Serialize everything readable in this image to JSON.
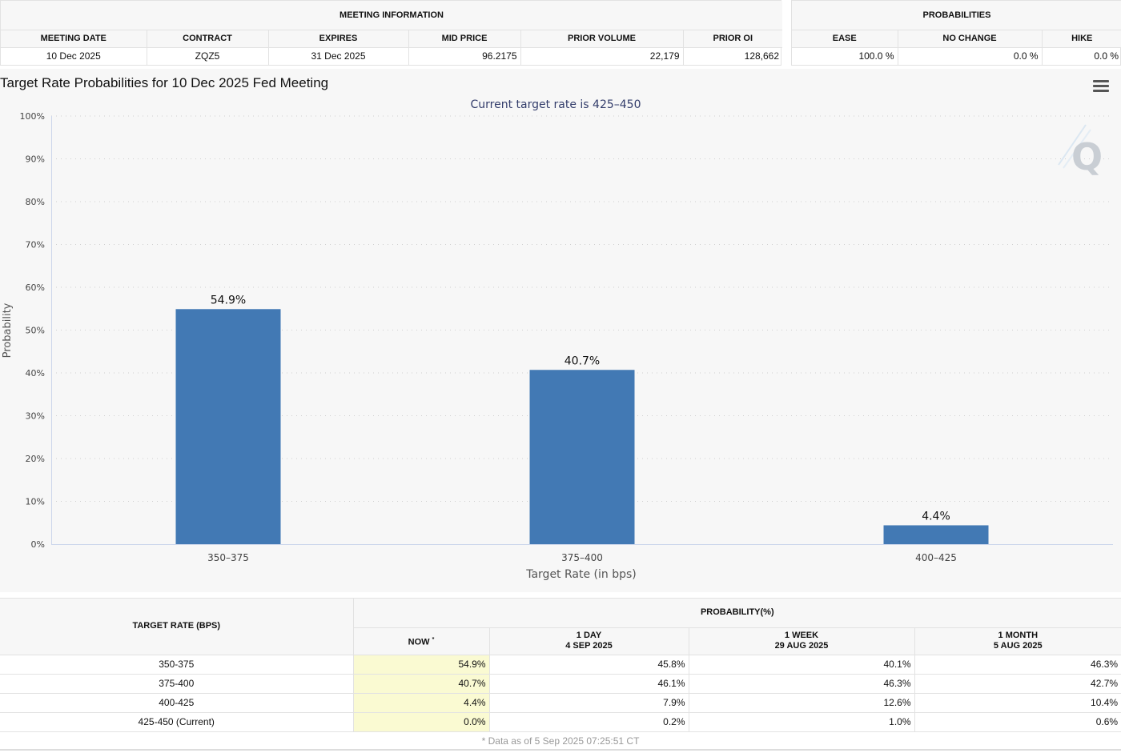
{
  "meeting_info": {
    "group_label": "MEETING INFORMATION",
    "headers": [
      "MEETING DATE",
      "CONTRACT",
      "EXPIRES",
      "MID PRICE",
      "PRIOR VOLUME",
      "PRIOR OI"
    ],
    "values": [
      "10 Dec 2025",
      "ZQZ5",
      "31 Dec 2025",
      "96.2175",
      "22,179",
      "128,662"
    ]
  },
  "probabilities": {
    "group_label": "PROBABILITIES",
    "headers": [
      "EASE",
      "NO CHANGE",
      "HIKE"
    ],
    "values": [
      "100.0 %",
      "0.0 %",
      "0.0 %"
    ]
  },
  "chart_data": {
    "type": "bar",
    "title": "Target Rate Probabilities for 10 Dec 2025 Fed Meeting",
    "subtitle": "Current target rate is 425–450",
    "xlabel": "Target Rate (in bps)",
    "ylabel": "Probability",
    "categories": [
      "350–375",
      "375–400",
      "400–425"
    ],
    "values": [
      54.9,
      40.7,
      4.4
    ],
    "data_labels": [
      "54.9%",
      "40.7%",
      "4.4%"
    ],
    "ylim": [
      0,
      100
    ],
    "yticks": [
      0,
      10,
      20,
      30,
      40,
      50,
      60,
      70,
      80,
      90,
      100
    ],
    "ytick_labels": [
      "0%",
      "10%",
      "20%",
      "30%",
      "40%",
      "50%",
      "60%",
      "70%",
      "80%",
      "90%",
      "100%"
    ],
    "grid": true,
    "bar_color": "#4279b4"
  },
  "history": {
    "target_rate_header": "TARGET RATE (BPS)",
    "probability_header": "PROBABILITY(%)",
    "columns": [
      {
        "line1": "NOW",
        "line2": ""
      },
      {
        "line1": "1 DAY",
        "line2": "4 SEP 2025"
      },
      {
        "line1": "1 WEEK",
        "line2": "29 AUG 2025"
      },
      {
        "line1": "1 MONTH",
        "line2": "5 AUG 2025"
      }
    ],
    "now_marker": "*",
    "rows": [
      {
        "rate": "350-375",
        "values": [
          "54.9%",
          "45.8%",
          "40.1%",
          "46.3%"
        ]
      },
      {
        "rate": "375-400",
        "values": [
          "40.7%",
          "46.1%",
          "46.3%",
          "42.7%"
        ]
      },
      {
        "rate": "400-425",
        "values": [
          "4.4%",
          "7.9%",
          "12.6%",
          "10.4%"
        ]
      },
      {
        "rate": "425-450 (Current)",
        "values": [
          "0.0%",
          "0.2%",
          "1.0%",
          "0.6%"
        ]
      }
    ],
    "footnote": "* Data as of 5 Sep 2025 07:25:51 CT"
  },
  "icons": {
    "menu": "hamburger-menu-icon",
    "watermark": "q-watermark-icon"
  }
}
